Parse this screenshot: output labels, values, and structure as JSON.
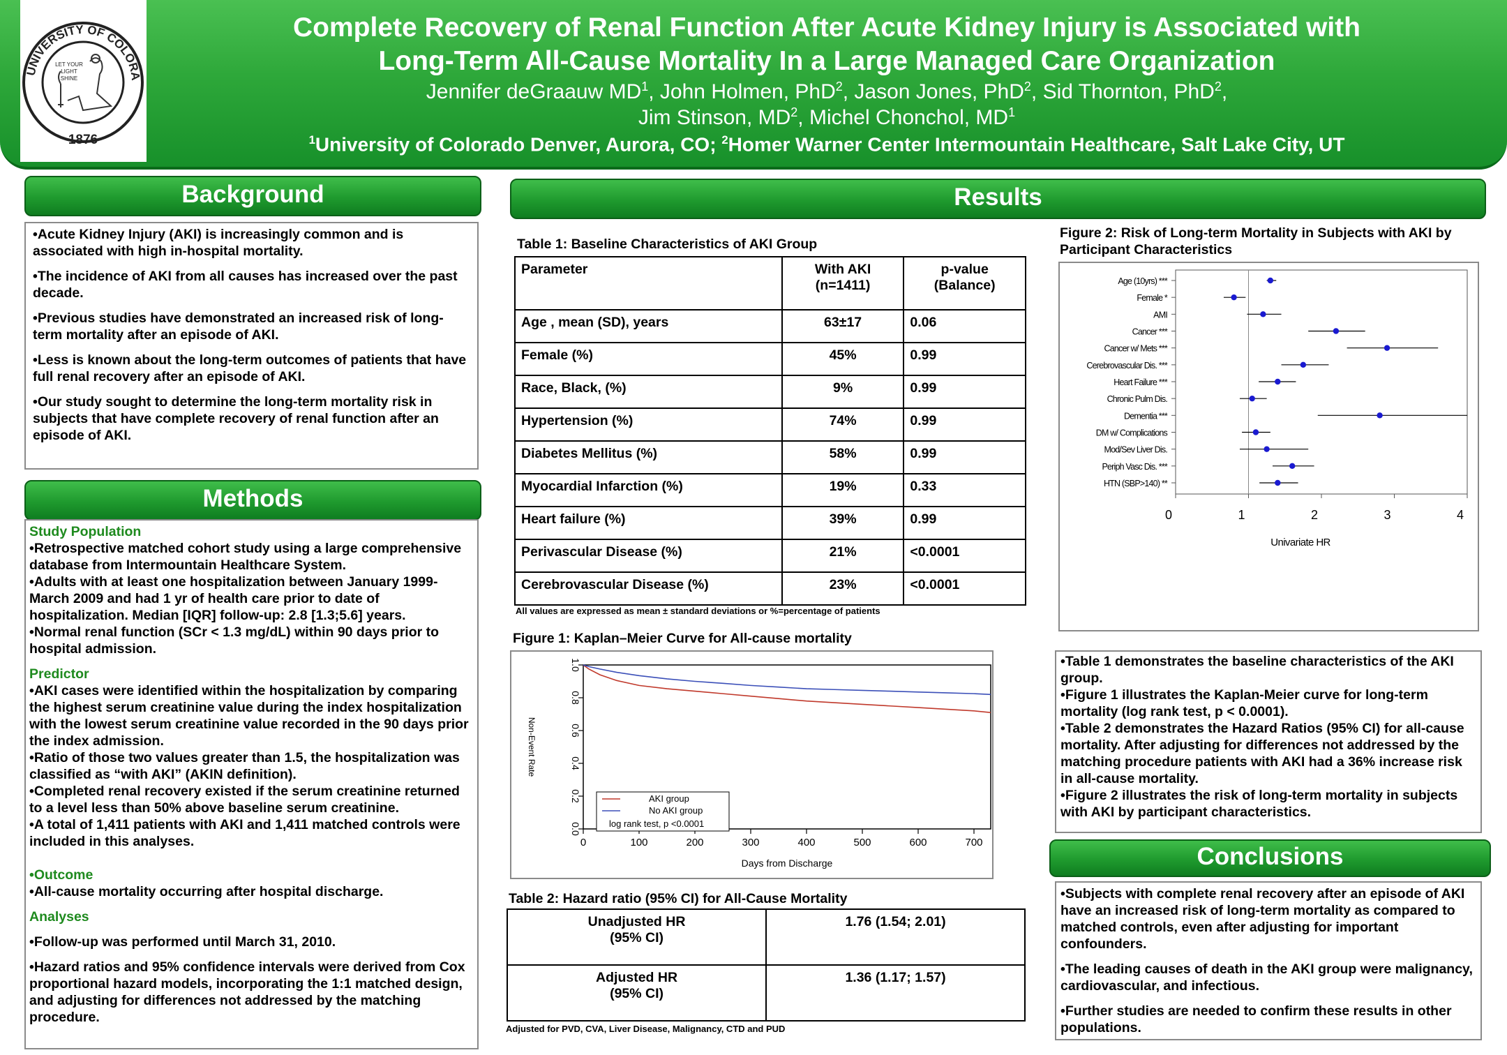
{
  "header": {
    "title_line1": "Complete Recovery of Renal Function After Acute Kidney Injury is Associated with",
    "title_line2": "Long-Term All-Cause Mortality In a Large Managed Care Organization",
    "authors_line1": [
      "Jennifer deGraauw MD",
      "1",
      ", John Holmen, PhD",
      "2",
      ", Jason Jones, PhD",
      "2",
      ", Sid Thornton, PhD",
      "2",
      ","
    ],
    "authors_line2": [
      "Jim Stinson, MD",
      "2",
      ", Michel Chonchol, MD",
      "1"
    ],
    "affiliation": [
      "1",
      "University of Colorado Denver, Aurora, CO; ",
      "2",
      "Homer Warner Center Intermountain Healthcare, Salt Lake City, UT"
    ],
    "logo": {
      "ring_top": "UNIVERSITY OF COLORADO",
      "year": "1876",
      "motto": [
        "LET YOUR",
        "LIGHT",
        "SHINE"
      ]
    }
  },
  "background": {
    "heading": "Background",
    "bullets": [
      "•Acute Kidney Injury (AKI) is increasingly common and  is associated with high in-hospital mortality.",
      "•The incidence of AKI from all causes has increased over the past decade.",
      "•Previous studies have demonstrated an increased risk of long-term mortality after an episode of AKI.",
      "•Less is known about the long-term outcomes of patients that have full renal recovery after an episode of AKI.",
      "•Our study sought to determine the long-term mortality risk in subjects that have complete recovery of renal function after an episode of AKI."
    ]
  },
  "methods": {
    "heading": "Methods",
    "study_population": {
      "label": "Study Population",
      "bullets": [
        "•Retrospective matched cohort study using a large comprehensive database from Intermountain Healthcare System.",
        "•Adults with at least one hospitalization between January 1999-March 2009 and had 1 yr of health care prior to date of hospitalization. Median [IQR]  follow-up: 2.8 [1.3;5.6] years.",
        "•Normal renal function (SCr < 1.3 mg/dL) within 90 days prior to hospital admission."
      ]
    },
    "predictor": {
      "label": "Predictor",
      "bullets": [
        "•AKI cases were identified within the hospitalization by comparing the highest serum creatinine value during the index hospitalization with the lowest serum creatinine value recorded in the 90 days prior the index admission.",
        "•Ratio of those two values greater than 1.5, the hospitalization was classified as “with AKI” (AKIN definition).",
        "•Completed renal recovery existed if the serum creatinine returned to a level less than 50% above baseline serum creatinine.",
        "•A total of 1,411 patients with AKI and 1,411 matched controls were included in this analyses."
      ]
    },
    "outcome": {
      "label": "•Outcome",
      "bullets": [
        "•All-cause mortality occurring after hospital discharge."
      ]
    },
    "analyses": {
      "label": "Analyses",
      "bullets": [
        "•Follow-up was performed until March 31, 2010.",
        "•Hazard ratios and 95% confidence intervals were derived from Cox proportional hazard models, incorporating the 1:1 matched design, and adjusting for differences not addressed by the matching procedure."
      ]
    }
  },
  "results": {
    "heading": "Results",
    "table1": {
      "caption": "Table 1: Baseline Characteristics of AKI Group",
      "headers": [
        "Parameter",
        "With AKI\n(n=1411)",
        "p-value\n(Balance)"
      ],
      "rows": [
        [
          "Age , mean (SD), years",
          "63±17",
          "0.06"
        ],
        [
          "Female (%)",
          "45%",
          "0.99"
        ],
        [
          "Race, Black, (%)",
          "9%",
          "0.99"
        ],
        [
          "Hypertension (%)",
          "74%",
          "0.99"
        ],
        [
          "Diabetes Mellitus (%)",
          "58%",
          "0.99"
        ],
        [
          "Myocardial Infarction (%)",
          "19%",
          "0.33"
        ],
        [
          "Heart failure (%)",
          "39%",
          "0.99"
        ],
        [
          "Perivascular Disease (%)",
          "21%",
          "<0.0001"
        ],
        [
          "Cerebrovascular Disease (%)",
          "23%",
          "<0.0001"
        ]
      ],
      "footnote": "All values are expressed as mean ± standard deviations or %=percentage of patients"
    },
    "figure1_caption": "Figure 1: Kaplan–Meier Curve for All-cause mortality",
    "table2": {
      "caption": "Table 2: Hazard ratio (95% CI) for All-Cause Mortality",
      "rows": [
        [
          "Unadjusted HR\n(95% CI)",
          "1.76 (1.54; 2.01)"
        ],
        [
          "Adjusted HR\n(95% CI)",
          "1.36 (1.17; 1.57)"
        ]
      ],
      "footnote": "Adjusted for PVD, CVA, Liver Disease, Malignancy, CTD and PUD"
    },
    "figure2_caption": "Figure 2: Risk of Long-term Mortality in Subjects with AKI by Participant Characteristics",
    "summary_bullets": [
      "•Table 1 demonstrates the baseline characteristics of the AKI group.",
      "•Figure 1 illustrates the Kaplan-Meier curve for long-term mortality (log rank test, p < 0.0001).",
      "•Table 2 demonstrates the Hazard Ratios (95% CI) for all-cause mortality. After adjusting for differences not addressed by the matching procedure patients with AKI had a 36% increase risk in all-cause mortality.",
      "•Figure 2 illustrates the  risk of long-term mortality in subjects with AKI by participant characteristics."
    ]
  },
  "conclusions": {
    "heading": "Conclusions",
    "bullets": [
      "•Subjects with complete renal recovery after an episode of AKI have an increased risk of long-term mortality as compared to matched controls, even after adjusting for important confounders.",
      "•The leading causes of death in the AKI group were malignancy, cardiovascular, and infectious.",
      "•Further studies are needed to confirm these results in other populations."
    ]
  },
  "colors": {
    "header_green": "#2ea83a",
    "aki_line": "#c0392b",
    "no_aki_line": "#3b4fb8",
    "forest_point": "#1a1ad0",
    "subheading_green": "#1e8a1e"
  },
  "chart_data": [
    {
      "type": "line",
      "title": "",
      "xlabel": "Days from Discharge",
      "ylabel": "Non-Event Rate",
      "xlim": [
        0,
        730
      ],
      "ylim": [
        0,
        1.0
      ],
      "x_ticks": [
        "0",
        "100",
        "200",
        "300",
        "400",
        "500",
        "600",
        "700"
      ],
      "y_ticks": [
        "0.0",
        "0.2",
        "0.4",
        "0.6",
        "0.8",
        "1.0"
      ],
      "legend": {
        "placement": "bottom-left",
        "note": "log rank test, p <0.0001"
      },
      "series": [
        {
          "name": "AKI group",
          "color": "#c0392b",
          "x": [
            0,
            10,
            30,
            60,
            100,
            150,
            200,
            250,
            300,
            350,
            400,
            450,
            500,
            550,
            600,
            650,
            700,
            730
          ],
          "y": [
            1.0,
            0.975,
            0.94,
            0.905,
            0.875,
            0.855,
            0.84,
            0.825,
            0.81,
            0.795,
            0.78,
            0.77,
            0.76,
            0.75,
            0.74,
            0.73,
            0.72,
            0.71
          ]
        },
        {
          "name": "No AKI group",
          "color": "#3b4fb8",
          "x": [
            0,
            10,
            30,
            60,
            100,
            150,
            200,
            250,
            300,
            350,
            400,
            450,
            500,
            550,
            600,
            650,
            700,
            730
          ],
          "y": [
            1.0,
            0.99,
            0.975,
            0.955,
            0.935,
            0.915,
            0.9,
            0.888,
            0.875,
            0.865,
            0.855,
            0.85,
            0.845,
            0.84,
            0.835,
            0.83,
            0.825,
            0.82
          ]
        }
      ]
    },
    {
      "type": "scatter",
      "title": "",
      "xlabel": "Univariate HR",
      "xlim": [
        0,
        4
      ],
      "x_ticks": [
        "0",
        "1",
        "2",
        "3",
        "4"
      ],
      "categories": [
        "Age (10yrs) ***",
        "Female *",
        "AMI",
        "Cancer ***",
        "Cancer w/ Mets ***",
        "Cerebrovascular Dis. ***",
        "Heart Failure ***",
        "Chronic Pulm Dis.",
        "Dementia ***",
        "DM w/ Complications",
        "Mod/Sev Liver Dis.",
        "Periph Vasc Dis. ***",
        "HTN (SBP>140) **"
      ],
      "hr": [
        1.3,
        0.8,
        1.2,
        2.2,
        2.9,
        1.75,
        1.4,
        1.05,
        2.8,
        1.1,
        1.25,
        1.6,
        1.4
      ],
      "lower": [
        1.25,
        0.66,
        0.98,
        1.82,
        2.35,
        1.45,
        1.14,
        0.88,
        1.95,
        0.91,
        0.88,
        1.33,
        1.15
      ],
      "upper": [
        1.38,
        0.96,
        1.45,
        2.6,
        3.6,
        2.1,
        1.65,
        1.25,
        4.0,
        1.3,
        1.82,
        1.9,
        1.68
      ]
    }
  ]
}
